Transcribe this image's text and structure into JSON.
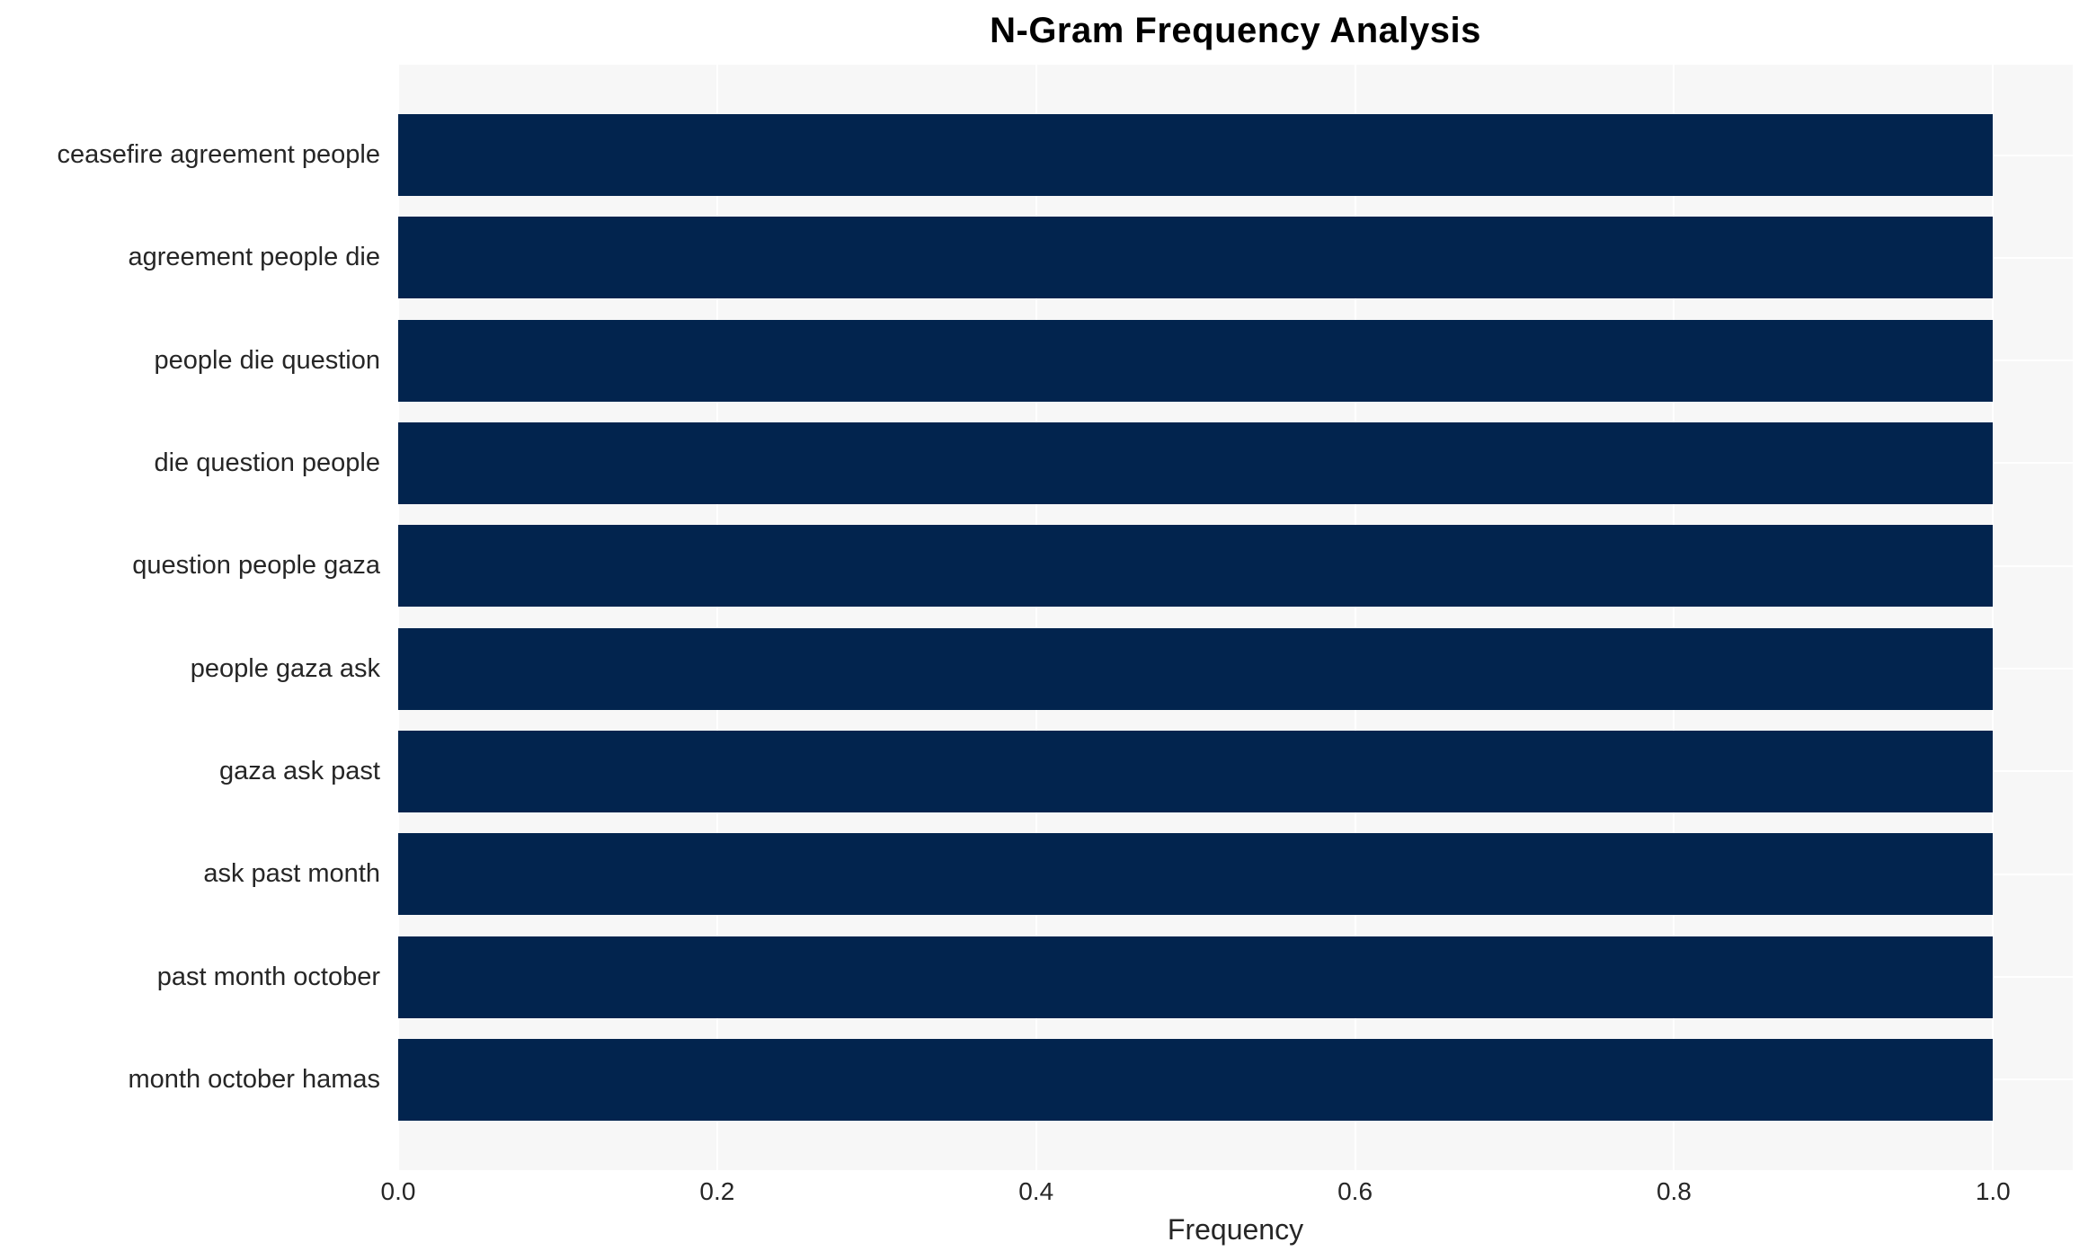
{
  "title": "N-Gram Frequency Analysis",
  "colors": {
    "bar": "#02244e",
    "plot_background": "#f7f7f7",
    "gridline": "#ffffff",
    "text": "#262626",
    "title_text": "#000000",
    "page_background": "#ffffff"
  },
  "chart_data": {
    "type": "bar",
    "orientation": "horizontal",
    "title": "N-Gram Frequency Analysis",
    "categories": [
      "ceasefire agreement people",
      "agreement people die",
      "people die question",
      "die question people",
      "question people gaza",
      "people gaza ask",
      "gaza ask past",
      "ask past month",
      "past month october",
      "month october hamas"
    ],
    "values": [
      1.0,
      1.0,
      1.0,
      1.0,
      1.0,
      1.0,
      1.0,
      1.0,
      1.0,
      1.0
    ],
    "xlabel": "Frequency",
    "ylabel": "",
    "x_ticks": [
      0.0,
      0.2,
      0.4,
      0.6,
      0.8,
      1.0
    ],
    "x_tick_labels": [
      "0.0",
      "0.2",
      "0.4",
      "0.6",
      "0.8",
      "1.0"
    ],
    "xlim": [
      0,
      1.05
    ],
    "grid": true,
    "legend": false
  }
}
